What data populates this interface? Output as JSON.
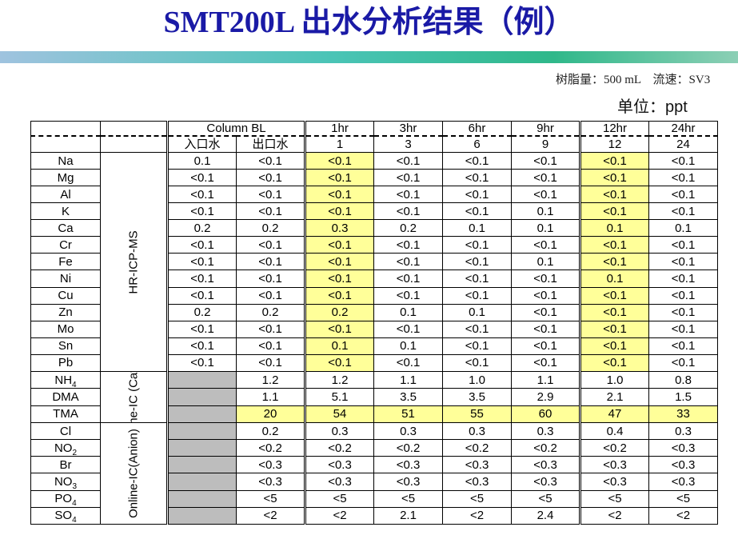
{
  "title": "SMT200L  出水分析结果（例）",
  "resin_info": "树脂量：500 mL　流速：SV3",
  "unit": "单位：ppt",
  "header": {
    "column_bl": "Column BL",
    "inlet": "入口水",
    "outlet": "出口水",
    "times": [
      "1hr",
      "3hr",
      "6hr",
      "9hr",
      "12hr",
      "24hr"
    ],
    "bv": [
      "1",
      "3",
      "6",
      "9",
      "12",
      "24"
    ]
  },
  "groups": {
    "icpms": "HR-ICP-MS",
    "cation": "Online-IC (Cation)",
    "anion": "Online-IC(Anion)"
  },
  "rows": [
    {
      "label": "Na",
      "v": [
        "0.1",
        "<0.1",
        "<0.1",
        "<0.1",
        "<0.1",
        "<0.1",
        "<0.1",
        "<0.1"
      ]
    },
    {
      "label": "Mg",
      "v": [
        "<0.1",
        "<0.1",
        "<0.1",
        "<0.1",
        "<0.1",
        "<0.1",
        "<0.1",
        "<0.1"
      ]
    },
    {
      "label": "Al",
      "v": [
        "<0.1",
        "<0.1",
        "<0.1",
        "<0.1",
        "<0.1",
        "<0.1",
        "<0.1",
        "<0.1"
      ]
    },
    {
      "label": "K",
      "v": [
        "<0.1",
        "<0.1",
        "<0.1",
        "<0.1",
        "<0.1",
        "0.1",
        "<0.1",
        "<0.1"
      ]
    },
    {
      "label": "Ca",
      "v": [
        "0.2",
        "0.2",
        "0.3",
        "0.2",
        "0.1",
        "0.1",
        "0.1",
        "0.1"
      ]
    },
    {
      "label": "Cr",
      "v": [
        "<0.1",
        "<0.1",
        "<0.1",
        "<0.1",
        "<0.1",
        "<0.1",
        "<0.1",
        "<0.1"
      ]
    },
    {
      "label": "Fe",
      "v": [
        "<0.1",
        "<0.1",
        "<0.1",
        "<0.1",
        "<0.1",
        "0.1",
        "<0.1",
        "<0.1"
      ]
    },
    {
      "label": "Ni",
      "v": [
        "<0.1",
        "<0.1",
        "<0.1",
        "<0.1",
        "<0.1",
        "<0.1",
        "0.1",
        "<0.1"
      ]
    },
    {
      "label": "Cu",
      "v": [
        "<0.1",
        "<0.1",
        "<0.1",
        "<0.1",
        "<0.1",
        "<0.1",
        "<0.1",
        "<0.1"
      ]
    },
    {
      "label": "Zn",
      "v": [
        "0.2",
        "0.2",
        "0.2",
        "0.1",
        "0.1",
        "<0.1",
        "<0.1",
        "<0.1"
      ]
    },
    {
      "label": "Mo",
      "v": [
        "<0.1",
        "<0.1",
        "<0.1",
        "<0.1",
        "<0.1",
        "<0.1",
        "<0.1",
        "<0.1"
      ]
    },
    {
      "label": "Sn",
      "v": [
        "<0.1",
        "<0.1",
        "0.1",
        "0.1",
        "<0.1",
        "<0.1",
        "<0.1",
        "<0.1"
      ]
    },
    {
      "label": "Pb",
      "v": [
        "<0.1",
        "<0.1",
        "<0.1",
        "<0.1",
        "<0.1",
        "<0.1",
        "<0.1",
        "<0.1"
      ]
    },
    {
      "label": "NH",
      "sub": "4",
      "v": [
        "",
        "1.2",
        "1.2",
        "1.1",
        "1.0",
        "1.1",
        "1.0",
        "0.8"
      ]
    },
    {
      "label": "DMA",
      "v": [
        "",
        "1.1",
        "5.1",
        "3.5",
        "3.5",
        "2.9",
        "2.1",
        "1.5"
      ]
    },
    {
      "label": "TMA",
      "v": [
        "",
        "20",
        "54",
        "51",
        "55",
        "60",
        "47",
        "33"
      ]
    },
    {
      "label": "Cl",
      "v": [
        "",
        "0.2",
        "0.3",
        "0.3",
        "0.3",
        "0.3",
        "0.4",
        "0.3"
      ]
    },
    {
      "label": "NO",
      "sub": "2",
      "v": [
        "",
        "<0.2",
        "<0.2",
        "<0.2",
        "<0.2",
        "<0.2",
        "<0.2",
        "<0.3"
      ]
    },
    {
      "label": "Br",
      "v": [
        "",
        "<0.3",
        "<0.3",
        "<0.3",
        "<0.3",
        "<0.3",
        "<0.3",
        "<0.3"
      ]
    },
    {
      "label": "NO",
      "sub": "3",
      "v": [
        "",
        "<0.3",
        "<0.3",
        "<0.3",
        "<0.3",
        "<0.3",
        "<0.3",
        "<0.3"
      ]
    },
    {
      "label": "PO",
      "sub": "4",
      "v": [
        "",
        "<5",
        "<5",
        "<5",
        "<5",
        "<5",
        "<5",
        "<5"
      ]
    },
    {
      "label": "SO",
      "sub": "4",
      "v": [
        "",
        "<2",
        "<2",
        "2.1",
        "<2",
        "2.4",
        "<2",
        "<2"
      ]
    }
  ],
  "colors": {
    "title": "#1a1aa6",
    "highlight": "#ffff99",
    "gray_cell": "#bdbdbd"
  }
}
